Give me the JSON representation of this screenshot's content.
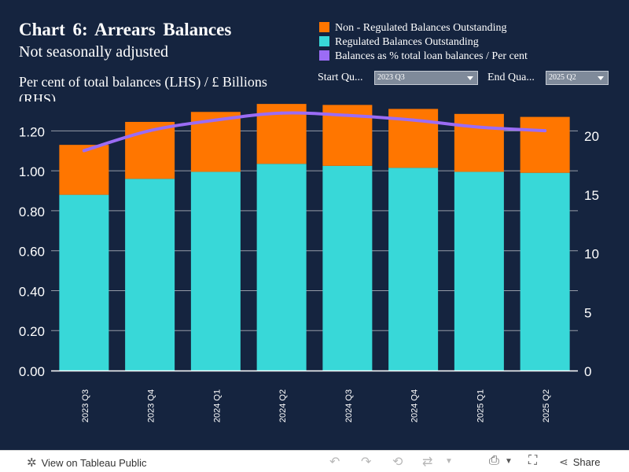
{
  "header": {
    "title": "Chart 6: Arrears Balances",
    "subtitle": "Not seasonally adjusted",
    "units": "Per cent of total balances (LHS) / £ Billions (RHS)"
  },
  "legend": [
    {
      "label": "Non - Regulated Balances Outstanding",
      "color": "#ff7600"
    },
    {
      "label": "Regulated Balances Outstanding",
      "color": "#38d8d8"
    },
    {
      "label": "Balances as % total loan balances / Per cent",
      "color": "#9b6cf5"
    }
  ],
  "filters": {
    "start_label": "Start Qu...",
    "start_value": "2023 Q3",
    "end_label": "End Qua...",
    "end_value": "2025 Q2"
  },
  "chart_data": {
    "type": "bar",
    "categories": [
      "2023 Q3",
      "2023 Q4",
      "2024 Q1",
      "2024 Q2",
      "2024 Q3",
      "2024 Q4",
      "2025 Q1",
      "2025 Q2"
    ],
    "series": [
      {
        "name": "Regulated Balances Outstanding",
        "type": "bar",
        "axis": "left",
        "color": "#38d8d8",
        "values": [
          0.88,
          0.96,
          0.995,
          1.035,
          1.025,
          1.015,
          0.995,
          0.99
        ]
      },
      {
        "name": "Non - Regulated Balances Outstanding",
        "type": "bar",
        "axis": "left",
        "color": "#ff7600",
        "values": [
          0.25,
          0.285,
          0.3,
          0.3,
          0.305,
          0.295,
          0.29,
          0.28
        ]
      },
      {
        "name": "Balances as % total loan balances / Per cent",
        "type": "line",
        "axis": "right",
        "color": "#9b6cf5",
        "values": [
          18.7,
          20.4,
          21.3,
          21.9,
          21.7,
          21.3,
          20.7,
          20.4
        ]
      }
    ],
    "stacked": true,
    "y_left": {
      "ylim": [
        0,
        1.3
      ],
      "ticks": [
        "0.00",
        "0.20",
        "0.40",
        "0.60",
        "0.80",
        "1.00",
        "1.20"
      ]
    },
    "y_right": {
      "ylim": [
        0,
        22.08
      ],
      "ticks": [
        "0",
        "5",
        "10",
        "15",
        "20"
      ]
    },
    "grid": true,
    "legend_position": "top-right"
  },
  "footer": {
    "tableau_link": "View on Tableau Public",
    "share_label": "Share"
  }
}
